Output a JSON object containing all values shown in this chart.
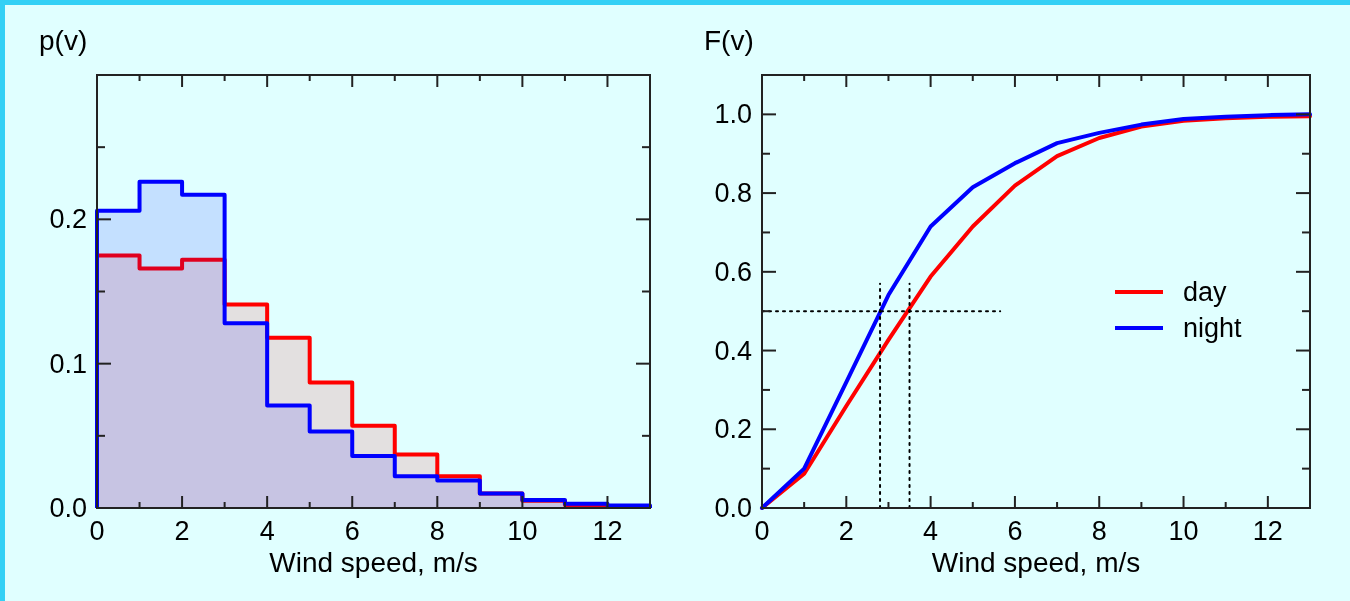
{
  "chart_data": [
    {
      "type": "histogram",
      "ylabel": "p(v)",
      "xlabel": "Wind speed, m/s",
      "bins": [
        0,
        1,
        2,
        3,
        4,
        5,
        6,
        7,
        8,
        9,
        10,
        11,
        12,
        13
      ],
      "xlim": [
        0,
        13
      ],
      "ylim": [
        0,
        0.3
      ],
      "xticks": [
        0,
        {
          "value": 1,
          "label": null
        },
        2,
        {
          "value": 3,
          "label": null
        },
        4,
        {
          "value": 5,
          "label": null
        },
        6,
        {
          "value": 7,
          "label": null
        },
        8,
        {
          "value": 9,
          "label": null
        },
        10,
        {
          "value": 11,
          "label": null
        },
        12
      ],
      "yticks": [
        {
          "value": 0,
          "label": "0.0"
        },
        {
          "value": 0.05,
          "label": null
        },
        0.1,
        {
          "value": 0.15,
          "label": null
        },
        0.2,
        {
          "value": 0.25,
          "label": null
        }
      ],
      "series": [
        {
          "color": "#ff0000",
          "values": [
            0.175,
            0.166,
            0.172,
            0.141,
            0.118,
            0.087,
            0.057,
            0.037,
            0.022,
            0.01,
            0.005,
            0.002,
            0.001
          ]
        },
        {
          "color": "#0000ff",
          "values": [
            0.206,
            0.226,
            0.217,
            0.128,
            0.071,
            0.053,
            0.036,
            0.022,
            0.019,
            0.01,
            0.0055,
            0.003,
            0.0018
          ]
        }
      ]
    },
    {
      "type": "line",
      "ylabel": "F(v)",
      "xlabel": "Wind speed, m/s",
      "xlim": [
        0,
        13
      ],
      "ylim": [
        0,
        1.1
      ],
      "legend": "right",
      "xticks": [
        0,
        {
          "value": 1,
          "label": null
        },
        2,
        {
          "value": 3,
          "label": null
        },
        4,
        {
          "value": 5,
          "label": null
        },
        6,
        {
          "value": 7,
          "label": null
        },
        8,
        {
          "value": 9,
          "label": null
        },
        10,
        {
          "value": 11,
          "label": null
        },
        12
      ],
      "yticks": [
        {
          "value": 0,
          "label": "0.0"
        },
        {
          "value": 0.1,
          "label": null
        },
        0.2,
        {
          "value": 0.3,
          "label": null
        },
        0.4,
        {
          "value": 0.5,
          "label": null
        },
        0.6,
        {
          "value": 0.7,
          "label": null
        },
        0.8,
        {
          "value": 0.9,
          "label": null
        },
        {
          "value": 1,
          "label": "1.0"
        }
      ],
      "x": [
        0,
        1,
        2,
        3,
        4,
        5,
        6,
        7,
        8,
        9,
        10,
        11,
        12,
        13
      ],
      "series": [
        {
          "name": "day",
          "color": "#ff0000",
          "values": [
            0,
            0.087,
            0.259,
            0.427,
            0.588,
            0.715,
            0.819,
            0.894,
            0.94,
            0.969,
            0.984,
            0.99,
            0.994,
            0.995
          ]
        },
        {
          "name": "night",
          "color": "#0000ff",
          "values": [
            0,
            0.1,
            0.32,
            0.541,
            0.715,
            0.815,
            0.876,
            0.927,
            0.953,
            0.974,
            0.988,
            0.994,
            0.998,
            1.0
          ]
        },
        {
          "color": "#000000",
          "line_style": "dotted",
          "x": [
            0,
            5.65
          ],
          "values": [
            0.5,
            0.5
          ]
        },
        {
          "color": "#000000",
          "line_style": "dotted",
          "x": [
            2.8,
            2.8
          ],
          "values": [
            0,
            0.57
          ]
        },
        {
          "color": "#000000",
          "line_style": "dotted",
          "x": [
            3.5,
            3.5
          ],
          "values": [
            0,
            0.57
          ]
        }
      ]
    }
  ]
}
